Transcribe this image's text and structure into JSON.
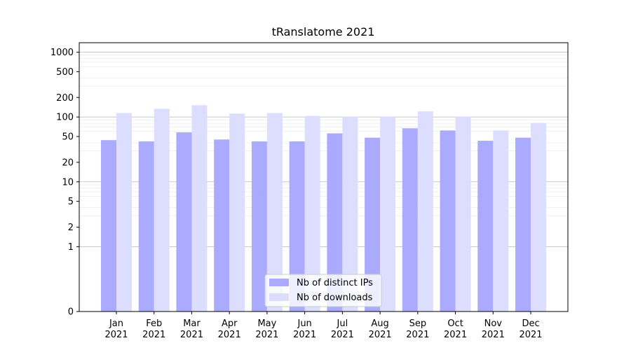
{
  "chart_data": {
    "type": "bar",
    "title": "tRanslatome 2021",
    "xlabel": "",
    "ylabel": "",
    "yscale": "symlog",
    "ylim": [
      0,
      1400
    ],
    "yticks": [
      0,
      1,
      2,
      5,
      10,
      20,
      50,
      100,
      200,
      500,
      1000
    ],
    "grid": true,
    "legend_position": "bottom-center",
    "categories": [
      {
        "month": "Jan",
        "year": "2021"
      },
      {
        "month": "Feb",
        "year": "2021"
      },
      {
        "month": "Mar",
        "year": "2021"
      },
      {
        "month": "Apr",
        "year": "2021"
      },
      {
        "month": "May",
        "year": "2021"
      },
      {
        "month": "Jun",
        "year": "2021"
      },
      {
        "month": "Jul",
        "year": "2021"
      },
      {
        "month": "Aug",
        "year": "2021"
      },
      {
        "month": "Sep",
        "year": "2021"
      },
      {
        "month": "Oct",
        "year": "2021"
      },
      {
        "month": "Nov",
        "year": "2021"
      },
      {
        "month": "Dec",
        "year": "2021"
      }
    ],
    "series": [
      {
        "name": "Nb of distinct IPs",
        "color": "#aaaaff",
        "values": [
          44,
          42,
          58,
          45,
          42,
          42,
          56,
          48,
          67,
          62,
          43,
          48
        ]
      },
      {
        "name": "Nb of downloads",
        "color": "#ddddff",
        "values": [
          115,
          134,
          152,
          113,
          115,
          104,
          102,
          102,
          122,
          102,
          62,
          81
        ]
      }
    ]
  }
}
